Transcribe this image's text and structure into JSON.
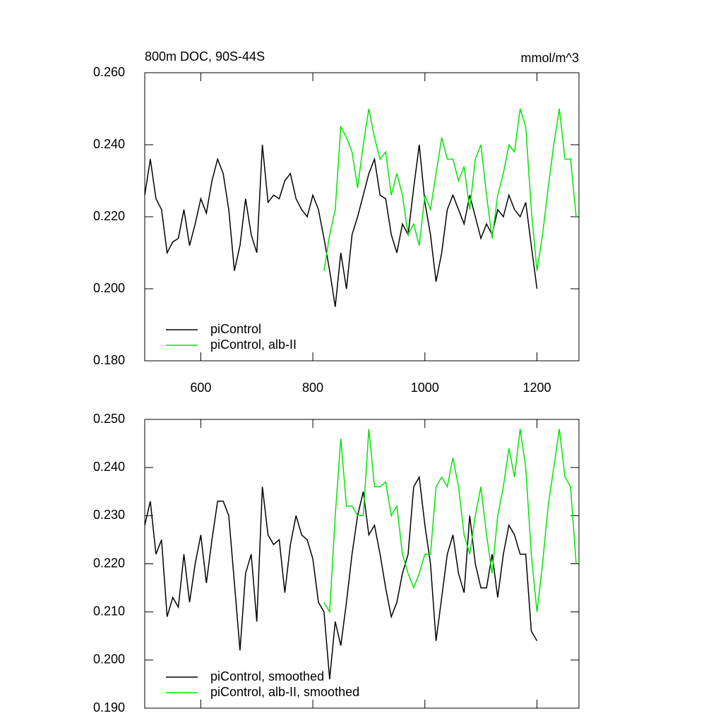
{
  "chart_data": [
    {
      "type": "line",
      "title": "800m DOC, 90S-44S",
      "units": "mmol/m^3",
      "x": [
        500,
        510,
        520,
        530,
        540,
        550,
        560,
        570,
        580,
        590,
        600,
        610,
        620,
        630,
        640,
        650,
        660,
        670,
        680,
        690,
        700,
        710,
        720,
        730,
        740,
        750,
        760,
        770,
        780,
        790,
        800,
        810,
        820,
        830,
        840,
        850,
        860,
        870,
        880,
        890,
        900,
        910,
        920,
        930,
        940,
        950,
        960,
        970,
        980,
        990,
        1000,
        1010,
        1020,
        1030,
        1040,
        1050,
        1060,
        1070,
        1080,
        1090,
        1100,
        1110,
        1120,
        1130,
        1140,
        1150,
        1160,
        1170,
        1180,
        1190,
        1200,
        1210,
        1220,
        1230,
        1240,
        1250,
        1260,
        1270
      ],
      "series": [
        {
          "name": "piControl",
          "color": "#000000",
          "values": [
            0.226,
            0.236,
            0.225,
            0.222,
            0.21,
            0.213,
            0.214,
            0.222,
            0.212,
            0.218,
            0.225,
            0.221,
            0.23,
            0.236,
            0.232,
            0.222,
            0.205,
            0.212,
            0.225,
            0.215,
            0.21,
            0.24,
            0.224,
            0.226,
            0.225,
            0.23,
            0.232,
            0.225,
            0.222,
            0.22,
            0.226,
            0.222,
            0.214,
            0.205,
            0.195,
            0.21,
            0.2,
            0.215,
            0.22,
            0.226,
            0.232,
            0.236,
            0.226,
            0.225,
            0.215,
            0.21,
            0.218,
            0.215,
            0.228,
            0.24,
            0.224,
            0.215,
            0.202,
            0.21,
            0.222,
            0.226,
            0.222,
            0.218,
            0.226,
            0.22,
            0.214,
            0.218,
            0.215,
            0.222,
            0.22,
            0.226,
            0.222,
            0.22,
            0.224,
            0.212,
            0.2,
            null,
            null,
            null,
            null,
            null,
            null,
            null
          ]
        },
        {
          "name": "piControl, alb-II",
          "color": "#00e600",
          "values": [
            null,
            null,
            null,
            null,
            null,
            null,
            null,
            null,
            null,
            null,
            null,
            null,
            null,
            null,
            null,
            null,
            null,
            null,
            null,
            null,
            null,
            null,
            null,
            null,
            null,
            null,
            null,
            null,
            null,
            null,
            null,
            null,
            0.205,
            0.215,
            0.222,
            0.245,
            0.242,
            0.238,
            0.228,
            0.24,
            0.25,
            0.242,
            0.236,
            0.238,
            0.226,
            0.232,
            0.226,
            0.215,
            0.218,
            0.212,
            0.226,
            0.222,
            0.232,
            0.242,
            0.236,
            0.236,
            0.23,
            0.234,
            0.222,
            0.236,
            0.24,
            0.226,
            0.214,
            0.226,
            0.232,
            0.24,
            0.238,
            0.25,
            0.245,
            0.222,
            0.205,
            0.215,
            0.228,
            0.24,
            0.25,
            0.236,
            0.236,
            0.22
          ]
        }
      ],
      "xlim": [
        500,
        1275
      ],
      "xticks": [
        600,
        800,
        1000,
        1200
      ],
      "ylim": [
        0.18,
        0.26
      ],
      "yticks": [
        {
          "value": 0.18,
          "label": "0.180"
        },
        {
          "value": 0.2,
          "label": "0.200"
        },
        {
          "value": 0.22,
          "label": "0.220"
        },
        {
          "value": 0.24,
          "label": "0.240"
        },
        {
          "value": 0.26,
          "label": "0.260"
        }
      ],
      "legend": "lower left"
    },
    {
      "type": "line",
      "x": [
        500,
        510,
        520,
        530,
        540,
        550,
        560,
        570,
        580,
        590,
        600,
        610,
        620,
        630,
        640,
        650,
        660,
        670,
        680,
        690,
        700,
        710,
        720,
        730,
        740,
        750,
        760,
        770,
        780,
        790,
        800,
        810,
        820,
        830,
        840,
        850,
        860,
        870,
        880,
        890,
        900,
        910,
        920,
        930,
        940,
        950,
        960,
        970,
        980,
        990,
        1000,
        1010,
        1020,
        1030,
        1040,
        1050,
        1060,
        1070,
        1080,
        1090,
        1100,
        1110,
        1120,
        1130,
        1140,
        1150,
        1160,
        1170,
        1180,
        1190,
        1200,
        1210,
        1220,
        1230,
        1240,
        1250,
        1260,
        1270
      ],
      "series": [
        {
          "name": "piControl, smoothed",
          "color": "#000000",
          "values": [
            0.228,
            0.233,
            0.222,
            0.225,
            0.209,
            0.213,
            0.211,
            0.222,
            0.212,
            0.22,
            0.226,
            0.216,
            0.225,
            0.233,
            0.233,
            0.23,
            0.216,
            0.202,
            0.218,
            0.222,
            0.208,
            0.236,
            0.226,
            0.224,
            0.225,
            0.214,
            0.224,
            0.23,
            0.226,
            0.225,
            0.221,
            0.212,
            0.21,
            0.196,
            0.208,
            0.203,
            0.212,
            0.222,
            0.23,
            0.235,
            0.226,
            0.228,
            0.222,
            0.215,
            0.209,
            0.212,
            0.218,
            0.222,
            0.236,
            0.238,
            0.228,
            0.22,
            0.204,
            0.213,
            0.222,
            0.226,
            0.218,
            0.214,
            0.23,
            0.22,
            0.215,
            0.215,
            0.222,
            0.213,
            0.222,
            0.228,
            0.226,
            0.222,
            0.222,
            0.206,
            0.204,
            null,
            null,
            null,
            null,
            null,
            null,
            null
          ]
        },
        {
          "name": "piControl, alb-II, smoothed",
          "color": "#00e600",
          "values": [
            null,
            null,
            null,
            null,
            null,
            null,
            null,
            null,
            null,
            null,
            null,
            null,
            null,
            null,
            null,
            null,
            null,
            null,
            null,
            null,
            null,
            null,
            null,
            null,
            null,
            null,
            null,
            null,
            null,
            null,
            null,
            null,
            0.212,
            0.21,
            0.23,
            0.246,
            0.232,
            0.232,
            0.23,
            0.23,
            0.248,
            0.236,
            0.236,
            0.237,
            0.23,
            0.232,
            0.222,
            0.218,
            0.215,
            0.218,
            0.222,
            0.222,
            0.236,
            0.238,
            0.236,
            0.242,
            0.236,
            0.226,
            0.222,
            0.23,
            0.236,
            0.226,
            0.218,
            0.23,
            0.236,
            0.244,
            0.238,
            0.248,
            0.24,
            0.222,
            0.21,
            0.22,
            0.232,
            0.24,
            0.248,
            0.238,
            0.236,
            0.22
          ]
        }
      ],
      "xlim": [
        500,
        1275
      ],
      "xticks": [
        600,
        800,
        1000,
        1200
      ],
      "ylim": [
        0.19,
        0.25
      ],
      "yticks": [
        {
          "value": 0.19,
          "label": "0.190"
        },
        {
          "value": 0.2,
          "label": "0.200"
        },
        {
          "value": 0.21,
          "label": "0.210"
        },
        {
          "value": 0.22,
          "label": "0.220"
        },
        {
          "value": 0.23,
          "label": "0.230"
        },
        {
          "value": 0.24,
          "label": "0.240"
        },
        {
          "value": 0.25,
          "label": "0.250"
        }
      ],
      "legend": "lower left"
    }
  ]
}
